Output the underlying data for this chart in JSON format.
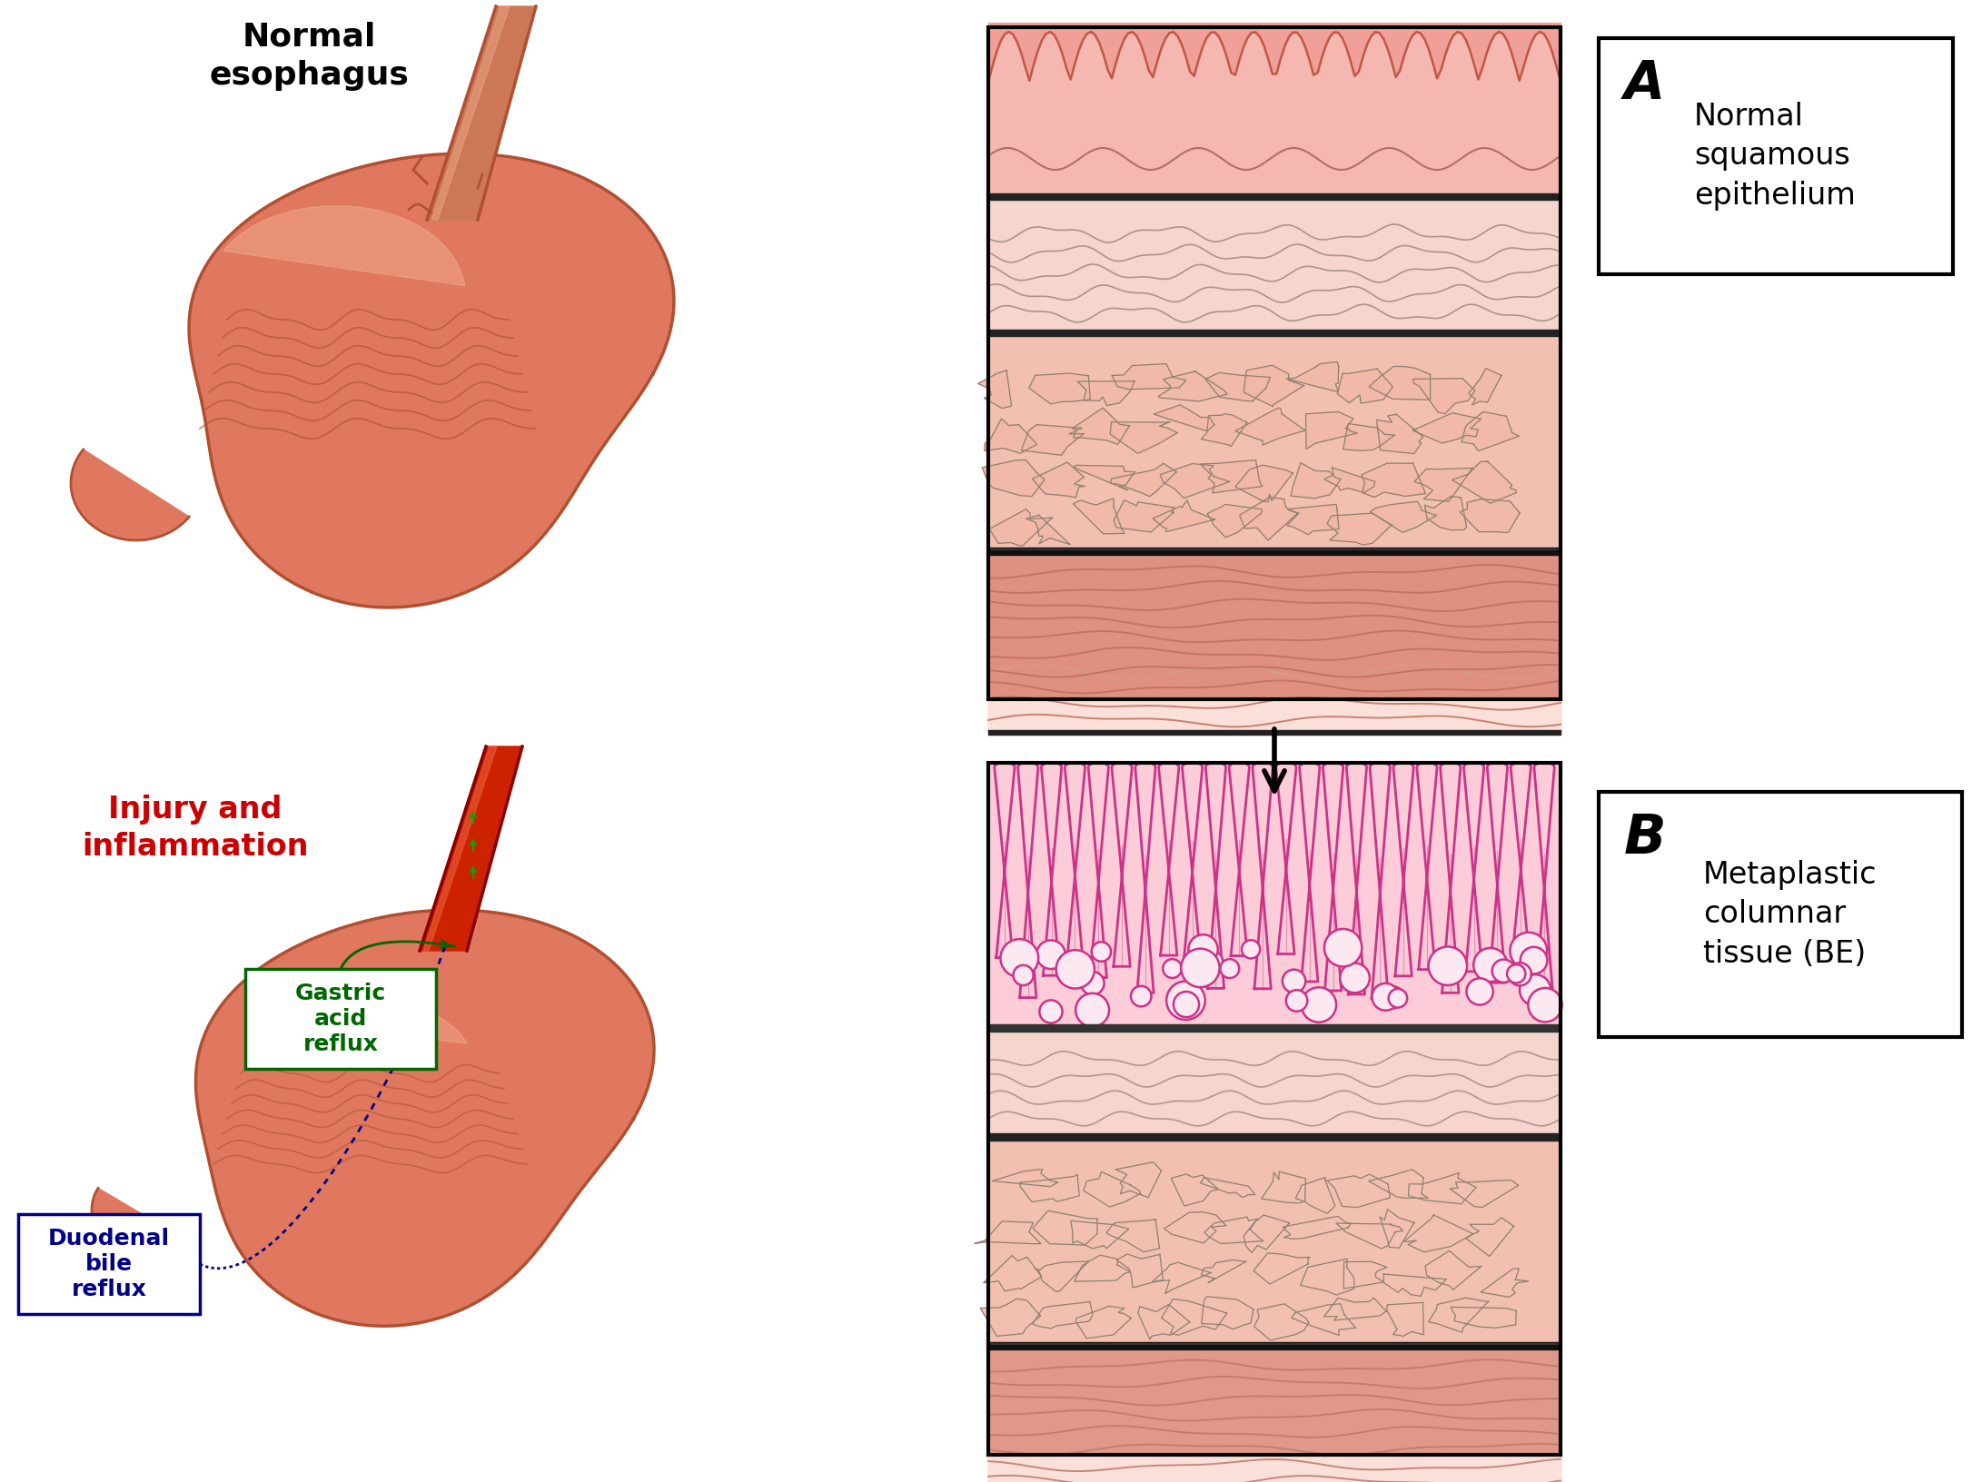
{
  "bg_color": "#ffffff",
  "title_normal": "Normal\nesophagus",
  "title_injury": "Injury and\ninflammation",
  "label_A": "A",
  "label_A_text": "Normal\nsquamous\nepithelium",
  "label_B": "B",
  "label_B_text": "Metaplastic\ncolumnar\ntissue (BE)",
  "label_gastric": "Gastric\nacid\nreflux",
  "label_duodenal": "Duodenal\nbile\nreflux",
  "col_stomach": "#e07860",
  "col_stomach_hi": "#f0a888",
  "col_stomach_dk": "#b05030",
  "col_stomach_in": "#d86850",
  "col_eso_norm": "#cc6644",
  "col_eso_infl": "#bb2200",
  "col_pink_top": "#f0b0a8",
  "col_pink_band": "#f8d0c8",
  "col_lamina": "#f5e0d8",
  "col_cells": "#f2c0b0",
  "col_muscle": "#e09888",
  "col_pale": "#faeae5",
  "col_outline": "#606060",
  "col_outline_dark": "#303030",
  "col_magenta": "#cc3388",
  "col_col_fill": "#f8b8cc",
  "col_col_bg": "#fcd8e4",
  "col_green": "#006600",
  "col_blue": "#000088"
}
